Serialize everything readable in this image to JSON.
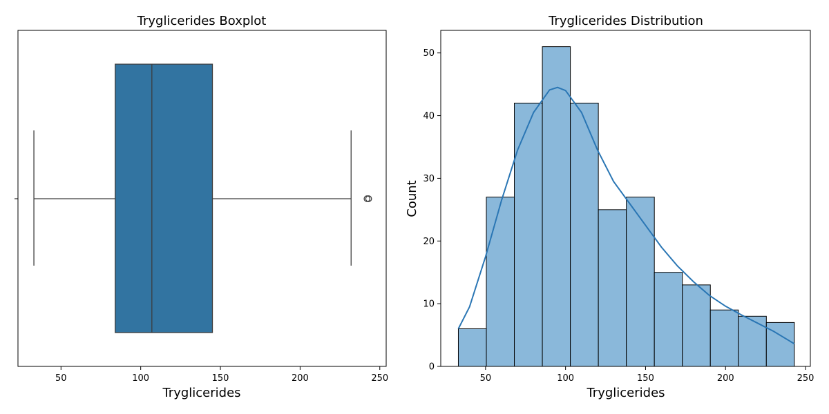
{
  "chart_data": [
    {
      "type": "box",
      "title": "Tryglicerides Boxplot",
      "xlabel": "Tryglicerides",
      "ylabel": "",
      "xlim": [
        23,
        254
      ],
      "xticks": [
        50,
        100,
        150,
        200,
        250
      ],
      "box": {
        "whisker_low": 33,
        "q1": 84,
        "median": 107,
        "q3": 145,
        "whisker_high": 232,
        "outliers": [
          242,
          243
        ]
      },
      "color": "#3274a1",
      "grid": false
    },
    {
      "type": "histogram",
      "title": "Tryglicerides Distribution",
      "xlabel": "Tryglicerides",
      "ylabel": "Count",
      "xlim": [
        22,
        253
      ],
      "ylim": [
        0,
        53.6
      ],
      "xticks": [
        50,
        100,
        150,
        200,
        250
      ],
      "yticks": [
        0,
        10,
        20,
        30,
        40,
        50
      ],
      "bin_edges": [
        33,
        50.5,
        68,
        85.5,
        103,
        120.5,
        138,
        155.5,
        173,
        190.5,
        208,
        225.5,
        243
      ],
      "counts": [
        6,
        27,
        42,
        51,
        42,
        25,
        27,
        15,
        13,
        9,
        8,
        7
      ],
      "kde": {
        "x": [
          33,
          40,
          50,
          60,
          70,
          80,
          90,
          95,
          100,
          110,
          120,
          130,
          140,
          150,
          160,
          170,
          180,
          190,
          200,
          210,
          220,
          230,
          243
        ],
        "y": [
          6,
          9.5,
          17.5,
          26.5,
          34.5,
          40.5,
          44.1,
          44.5,
          44,
          40.5,
          34.5,
          29.5,
          26,
          22.5,
          19,
          16,
          13.5,
          11.3,
          9.6,
          8.2,
          6.9,
          5.6,
          3.6
        ]
      },
      "bar_color": "#8ab8da",
      "line_color": "#2a76b4",
      "grid": false
    }
  ]
}
